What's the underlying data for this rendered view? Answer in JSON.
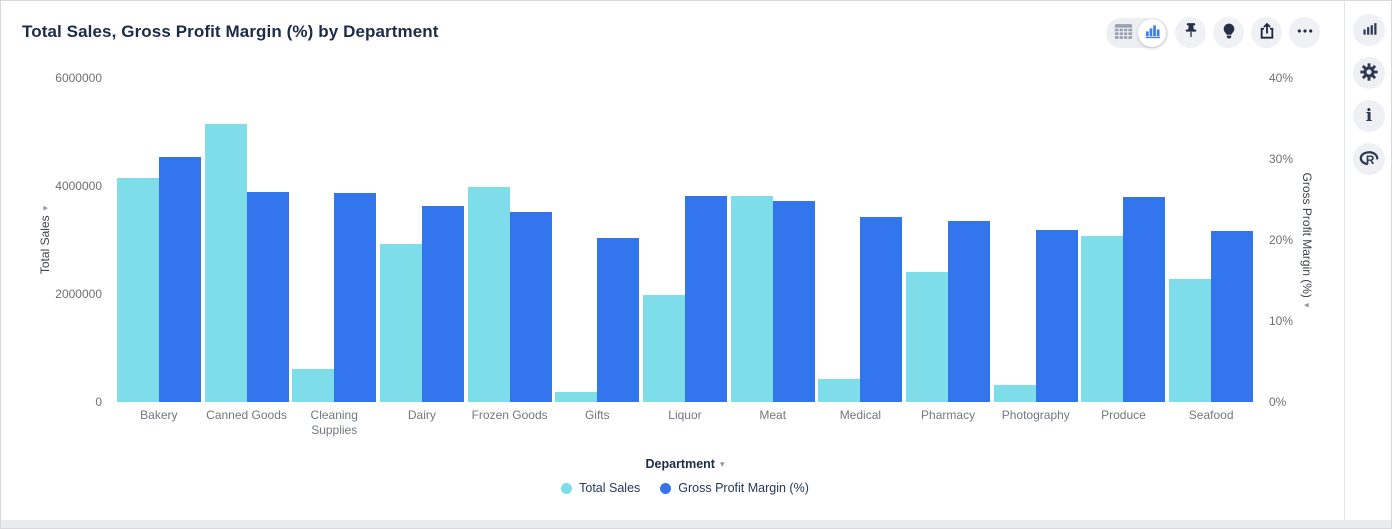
{
  "header": {
    "title": "Total Sales, Gross Profit Margin (%) by Department"
  },
  "toolbar": {
    "view_toggle": {
      "options": [
        "table-view",
        "chart-view"
      ],
      "selected": "chart-view"
    },
    "buttons": [
      "pin",
      "explain",
      "export",
      "more-options"
    ]
  },
  "rail": {
    "buttons": [
      "chart-type",
      "settings",
      "info",
      "r-analytics"
    ]
  },
  "icons": {
    "caret_down": "▾",
    "info_glyph": "i"
  },
  "colors": {
    "series_total_sales": "#7eдde8",
    "series_cyan": "#7edde8",
    "series_blue": "#3275ec",
    "icon_navy": "#2e3a52",
    "title_navy": "#1c2b4a"
  },
  "chart_data": {
    "type": "bar",
    "title": "Total Sales, Gross Profit Margin (%) by Department",
    "categories": [
      "Bakery",
      "Canned Goods",
      "Cleaning Supplies",
      "Dairy",
      "Frozen Goods",
      "Gifts",
      "Liquor",
      "Meat",
      "Medical",
      "Pharmacy",
      "Photography",
      "Produce",
      "Seafood"
    ],
    "series": [
      {
        "name": "Total Sales",
        "axis": "left",
        "color": "#7edde8",
        "values": [
          4150000,
          5150000,
          620000,
          2920000,
          3980000,
          190000,
          1980000,
          3810000,
          430000,
          2410000,
          320000,
          3070000,
          2280000
        ]
      },
      {
        "name": "Gross Profit Margin (%)",
        "axis": "right",
        "color": "#3275ec",
        "values": [
          30.2,
          25.9,
          25.8,
          24.2,
          23.5,
          20.2,
          25.4,
          24.8,
          22.9,
          22.3,
          21.2,
          25.3,
          21.1
        ]
      }
    ],
    "left_axis": {
      "label": "Total Sales",
      "max": 6000000,
      "ticks": [
        0,
        2000000,
        4000000,
        6000000
      ],
      "tick_labels": [
        "0",
        "2000000",
        "4000000",
        "6000000"
      ]
    },
    "right_axis": {
      "label": "Gross Profit Margin (%)",
      "max": 40,
      "ticks": [
        0,
        10,
        20,
        30,
        40
      ],
      "tick_labels": [
        "0%",
        "10%",
        "20%",
        "30%",
        "40%"
      ]
    },
    "xlabel": "Department",
    "grid": false,
    "legend_position": "bottom"
  }
}
